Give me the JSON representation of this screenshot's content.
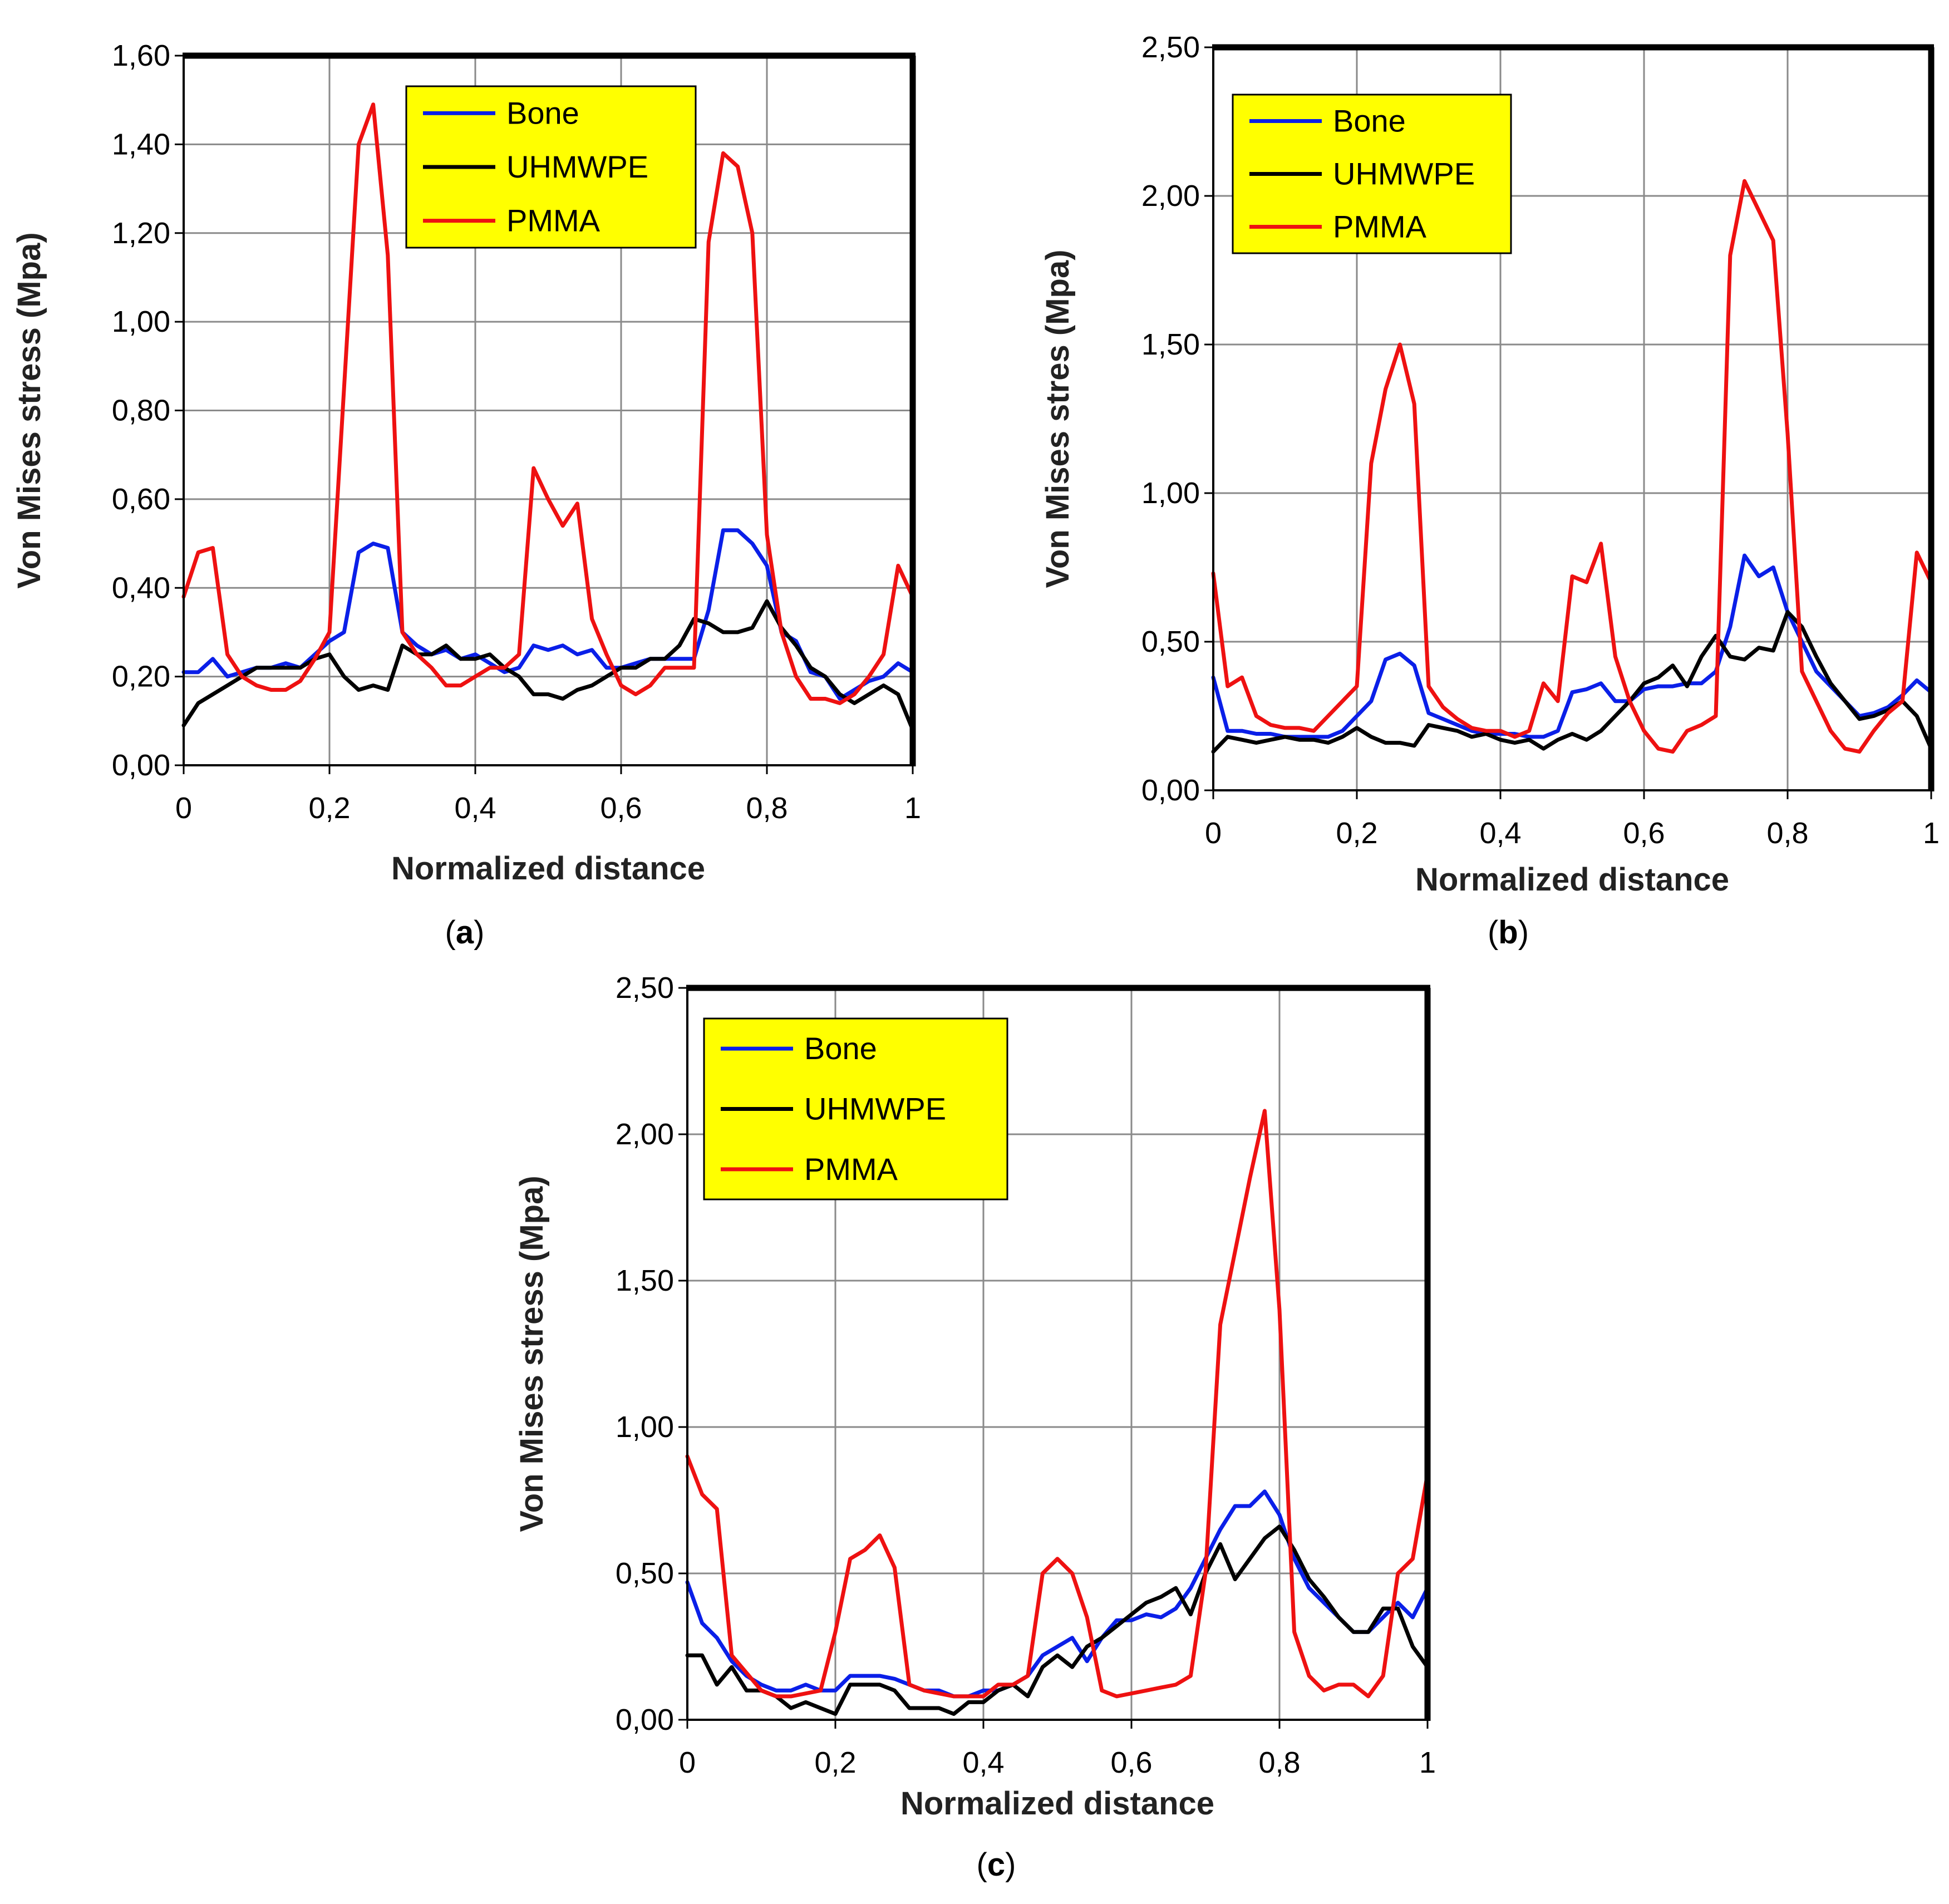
{
  "chart_data": [
    {
      "id": "a",
      "type": "line",
      "caption_label": "a",
      "xlabel": "Normalized distance",
      "ylabel": "Von Mises stress (Mpa)",
      "xlim": [
        0,
        1
      ],
      "ylim": [
        0,
        1.6
      ],
      "xticks": [
        "0",
        "0,2",
        "0,4",
        "0,6",
        "0,8",
        "1"
      ],
      "yticks": [
        "0,00",
        "0,20",
        "0,40",
        "0,60",
        "0,80",
        "1,00",
        "1,20",
        "1,40",
        "1,60"
      ],
      "grid": true,
      "legend_position": "top-center",
      "x": [
        0,
        0.02,
        0.04,
        0.06,
        0.08,
        0.1,
        0.12,
        0.14,
        0.16,
        0.18,
        0.2,
        0.22,
        0.24,
        0.26,
        0.28,
        0.3,
        0.32,
        0.34,
        0.36,
        0.38,
        0.4,
        0.42,
        0.44,
        0.46,
        0.48,
        0.5,
        0.52,
        0.54,
        0.56,
        0.58,
        0.6,
        0.62,
        0.64,
        0.66,
        0.68,
        0.7,
        0.72,
        0.74,
        0.76,
        0.78,
        0.8,
        0.82,
        0.84,
        0.86,
        0.88,
        0.9,
        0.92,
        0.94,
        0.96,
        0.98,
        1
      ],
      "series": [
        {
          "name": "Bone",
          "color": "#0a1fe8",
          "values": [
            0.21,
            0.21,
            0.24,
            0.2,
            0.21,
            0.22,
            0.22,
            0.23,
            0.22,
            0.25,
            0.28,
            0.3,
            0.48,
            0.5,
            0.49,
            0.3,
            0.27,
            0.25,
            0.26,
            0.24,
            0.25,
            0.23,
            0.21,
            0.22,
            0.27,
            0.26,
            0.27,
            0.25,
            0.26,
            0.22,
            0.22,
            0.23,
            0.24,
            0.24,
            0.24,
            0.24,
            0.35,
            0.53,
            0.53,
            0.5,
            0.45,
            0.3,
            0.28,
            0.21,
            0.2,
            0.15,
            0.17,
            0.19,
            0.2,
            0.23,
            0.21
          ]
        },
        {
          "name": "UHMWPE",
          "color": "#000000",
          "values": [
            0.09,
            0.14,
            0.16,
            0.18,
            0.2,
            0.22,
            0.22,
            0.22,
            0.22,
            0.24,
            0.25,
            0.2,
            0.17,
            0.18,
            0.17,
            0.27,
            0.25,
            0.25,
            0.27,
            0.24,
            0.24,
            0.25,
            0.22,
            0.2,
            0.16,
            0.16,
            0.15,
            0.17,
            0.18,
            0.2,
            0.22,
            0.22,
            0.24,
            0.24,
            0.27,
            0.33,
            0.32,
            0.3,
            0.3,
            0.31,
            0.37,
            0.31,
            0.27,
            0.22,
            0.2,
            0.16,
            0.14,
            0.16,
            0.18,
            0.16,
            0.08
          ]
        },
        {
          "name": "PMMA",
          "color": "#ee1111",
          "values": [
            0.38,
            0.48,
            0.49,
            0.25,
            0.2,
            0.18,
            0.17,
            0.17,
            0.19,
            0.24,
            0.3,
            0.85,
            1.4,
            1.49,
            1.15,
            0.3,
            0.25,
            0.22,
            0.18,
            0.18,
            0.2,
            0.22,
            0.22,
            0.25,
            0.67,
            0.6,
            0.54,
            0.59,
            0.33,
            0.25,
            0.18,
            0.16,
            0.18,
            0.22,
            0.22,
            0.22,
            1.18,
            1.38,
            1.35,
            1.2,
            0.52,
            0.3,
            0.2,
            0.15,
            0.15,
            0.14,
            0.16,
            0.2,
            0.25,
            0.45,
            0.38
          ]
        }
      ]
    },
    {
      "id": "b",
      "type": "line",
      "caption_label": "b",
      "xlabel": "Normalized distance",
      "ylabel": "Von Mises stres (Mpa)",
      "xlim": [
        0,
        1
      ],
      "ylim": [
        0,
        2.5
      ],
      "xticks": [
        "0",
        "0,2",
        "0,4",
        "0,6",
        "0,8",
        "1"
      ],
      "yticks": [
        "0,00",
        "0,50",
        "1,00",
        "1,50",
        "2,00",
        "2,50"
      ],
      "grid": true,
      "legend_position": "top-left",
      "x": [
        0,
        0.02,
        0.04,
        0.06,
        0.08,
        0.1,
        0.12,
        0.14,
        0.16,
        0.18,
        0.2,
        0.22,
        0.24,
        0.26,
        0.28,
        0.3,
        0.32,
        0.34,
        0.36,
        0.38,
        0.4,
        0.42,
        0.44,
        0.46,
        0.48,
        0.5,
        0.52,
        0.54,
        0.56,
        0.58,
        0.6,
        0.62,
        0.64,
        0.66,
        0.68,
        0.7,
        0.72,
        0.74,
        0.76,
        0.78,
        0.8,
        0.82,
        0.84,
        0.86,
        0.88,
        0.9,
        0.92,
        0.94,
        0.96,
        0.98,
        1
      ],
      "series": [
        {
          "name": "Bone",
          "color": "#0a1fe8",
          "values": [
            0.38,
            0.2,
            0.2,
            0.19,
            0.19,
            0.18,
            0.18,
            0.18,
            0.18,
            0.2,
            0.25,
            0.3,
            0.44,
            0.46,
            0.42,
            0.26,
            0.24,
            0.22,
            0.2,
            0.19,
            0.19,
            0.19,
            0.18,
            0.18,
            0.2,
            0.33,
            0.34,
            0.36,
            0.3,
            0.3,
            0.34,
            0.35,
            0.35,
            0.36,
            0.36,
            0.4,
            0.55,
            0.79,
            0.72,
            0.75,
            0.6,
            0.5,
            0.4,
            0.35,
            0.3,
            0.25,
            0.26,
            0.28,
            0.32,
            0.37,
            0.33
          ]
        },
        {
          "name": "UHMWPE",
          "color": "#000000",
          "values": [
            0.13,
            0.18,
            0.17,
            0.16,
            0.17,
            0.18,
            0.17,
            0.17,
            0.16,
            0.18,
            0.21,
            0.18,
            0.16,
            0.16,
            0.15,
            0.22,
            0.21,
            0.2,
            0.18,
            0.19,
            0.17,
            0.16,
            0.17,
            0.14,
            0.17,
            0.19,
            0.17,
            0.2,
            0.25,
            0.3,
            0.36,
            0.38,
            0.42,
            0.35,
            0.45,
            0.52,
            0.45,
            0.44,
            0.48,
            0.47,
            0.6,
            0.55,
            0.45,
            0.36,
            0.3,
            0.24,
            0.25,
            0.27,
            0.3,
            0.25,
            0.14
          ]
        },
        {
          "name": "PMMA",
          "color": "#ee1111",
          "values": [
            0.73,
            0.35,
            0.38,
            0.25,
            0.22,
            0.21,
            0.21,
            0.2,
            0.25,
            0.3,
            0.35,
            1.1,
            1.35,
            1.5,
            1.3,
            0.35,
            0.28,
            0.24,
            0.21,
            0.2,
            0.2,
            0.18,
            0.2,
            0.36,
            0.3,
            0.72,
            0.7,
            0.83,
            0.45,
            0.3,
            0.2,
            0.14,
            0.13,
            0.2,
            0.22,
            0.25,
            1.8,
            2.05,
            1.95,
            1.85,
            1.2,
            0.4,
            0.3,
            0.2,
            0.14,
            0.13,
            0.2,
            0.26,
            0.3,
            0.8,
            0.7
          ]
        }
      ]
    },
    {
      "id": "c",
      "type": "line",
      "caption_label": "c",
      "xlabel": "Normalized distance",
      "ylabel": "Von Mises stress (Mpa)",
      "xlim": [
        0,
        1
      ],
      "ylim": [
        0,
        2.5
      ],
      "xticks": [
        "0",
        "0,2",
        "0,4",
        "0,6",
        "0,8",
        "1"
      ],
      "yticks": [
        "0,00",
        "0,50",
        "1,00",
        "1,50",
        "2,00",
        "2,50"
      ],
      "grid": true,
      "legend_position": "top-left",
      "x": [
        0,
        0.02,
        0.04,
        0.06,
        0.08,
        0.1,
        0.12,
        0.14,
        0.16,
        0.18,
        0.2,
        0.22,
        0.24,
        0.26,
        0.28,
        0.3,
        0.32,
        0.34,
        0.36,
        0.38,
        0.4,
        0.42,
        0.44,
        0.46,
        0.48,
        0.5,
        0.52,
        0.54,
        0.56,
        0.58,
        0.6,
        0.62,
        0.64,
        0.66,
        0.68,
        0.7,
        0.72,
        0.74,
        0.76,
        0.78,
        0.8,
        0.82,
        0.84,
        0.86,
        0.88,
        0.9,
        0.92,
        0.94,
        0.96,
        0.98,
        1
      ],
      "series": [
        {
          "name": "Bone",
          "color": "#0a1fe8",
          "values": [
            0.47,
            0.33,
            0.28,
            0.2,
            0.15,
            0.12,
            0.1,
            0.1,
            0.12,
            0.1,
            0.1,
            0.15,
            0.15,
            0.15,
            0.14,
            0.12,
            0.1,
            0.1,
            0.08,
            0.08,
            0.1,
            0.1,
            0.12,
            0.15,
            0.22,
            0.25,
            0.28,
            0.2,
            0.28,
            0.34,
            0.34,
            0.36,
            0.35,
            0.38,
            0.45,
            0.55,
            0.65,
            0.73,
            0.73,
            0.78,
            0.7,
            0.55,
            0.45,
            0.4,
            0.35,
            0.3,
            0.3,
            0.35,
            0.4,
            0.35,
            0.45
          ]
        },
        {
          "name": "UHMWPE",
          "color": "#000000",
          "values": [
            0.22,
            0.22,
            0.12,
            0.18,
            0.1,
            0.1,
            0.08,
            0.04,
            0.06,
            0.04,
            0.02,
            0.12,
            0.12,
            0.12,
            0.1,
            0.04,
            0.04,
            0.04,
            0.02,
            0.06,
            0.06,
            0.1,
            0.12,
            0.08,
            0.18,
            0.22,
            0.18,
            0.25,
            0.28,
            0.32,
            0.36,
            0.4,
            0.42,
            0.45,
            0.36,
            0.5,
            0.6,
            0.48,
            0.55,
            0.62,
            0.66,
            0.58,
            0.48,
            0.42,
            0.35,
            0.3,
            0.3,
            0.38,
            0.38,
            0.25,
            0.18
          ]
        },
        {
          "name": "PMMA",
          "color": "#ee1111",
          "values": [
            0.9,
            0.77,
            0.72,
            0.22,
            0.16,
            0.1,
            0.08,
            0.08,
            0.09,
            0.1,
            0.3,
            0.55,
            0.58,
            0.63,
            0.52,
            0.12,
            0.1,
            0.09,
            0.08,
            0.08,
            0.08,
            0.12,
            0.12,
            0.15,
            0.5,
            0.55,
            0.5,
            0.35,
            0.1,
            0.08,
            0.09,
            0.1,
            0.11,
            0.12,
            0.15,
            0.5,
            1.35,
            1.6,
            1.85,
            2.08,
            1.4,
            0.3,
            0.15,
            0.1,
            0.12,
            0.12,
            0.08,
            0.15,
            0.5,
            0.55,
            0.84
          ]
        }
      ]
    }
  ]
}
